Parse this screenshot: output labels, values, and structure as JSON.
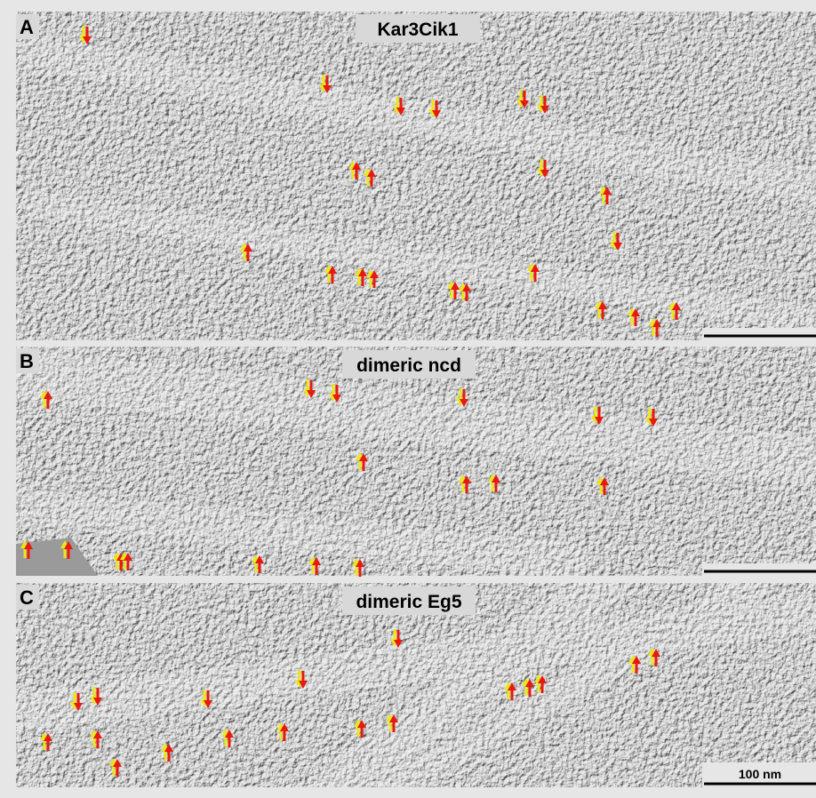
{
  "panels": [
    {
      "label": "A",
      "title": "Kar3Cik1"
    },
    {
      "label": "B",
      "title": "dimeric ncd"
    },
    {
      "label": "C",
      "title": "dimeric Eg5",
      "scale_bar_label": "100 nm"
    }
  ]
}
